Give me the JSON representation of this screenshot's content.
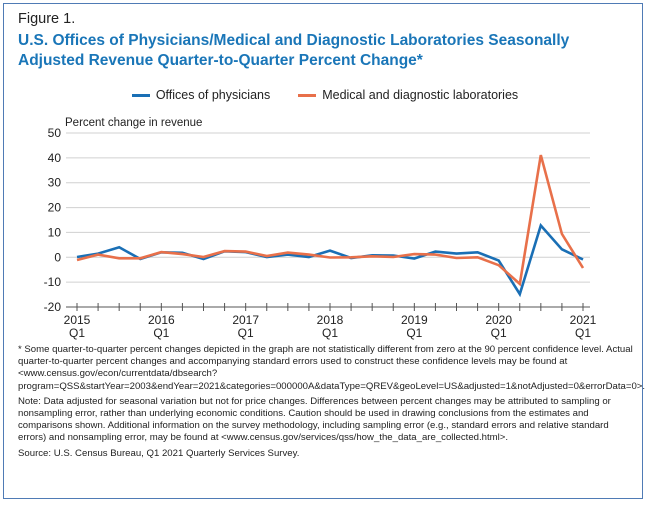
{
  "figure_label": "Figure 1.",
  "title": "U.S. Offices of Physicians/Medical and Diagnostic Laboratories Seasonally Adjusted Revenue Quarter-to-Quarter Percent Change*",
  "notes": {
    "asterisk": "* Some quarter-to-quarter percent changes depicted in the graph are not statistically different from zero at the 90 percent confidence level. Actual quarter-to-quarter percent changes and accompanying standard errors used to construct these confidence levels may be found at <www.census.gov/econ/currentdata/dbsearch?program=QSS&startYear=2003&endYear=2021&categories=000000A&dataType=QREV&geoLevel=US&adjusted=1&notAdjusted=0&errorData=0>.",
    "note": "Note: Data adjusted for seasonal variation but not for price changes. Differences between percent changes may be attributed to sampling or nonsampling error, rather than underlying economic conditions. Caution should be used in drawing conclusions from the estimates and comparisons shown. Additional information on the survey methodology, including sampling error (e.g., standard errors and relative standard errors) and nonsampling error, may be found at <www.census.gov/services/qss/how_the_data_are_collected.html>.",
    "source": "Source: U.S. Census Bureau, Q1 2021 Quarterly Services Survey."
  },
  "chart_data": {
    "type": "line",
    "title": "U.S. Offices of Physicians/Medical and Diagnostic Laboratories Seasonally Adjusted Revenue Quarter-to-Quarter Percent Change*",
    "ylabel": "Percent change in revenue",
    "xlabel": "",
    "ylim": [
      -20,
      50
    ],
    "yticks": [
      50,
      40,
      30,
      20,
      10,
      0,
      -10,
      -20
    ],
    "grid": true,
    "legend_position": "top-center",
    "x": [
      "2015Q1",
      "2015Q2",
      "2015Q3",
      "2015Q4",
      "2016Q1",
      "2016Q2",
      "2016Q3",
      "2016Q4",
      "2017Q1",
      "2017Q2",
      "2017Q3",
      "2017Q4",
      "2018Q1",
      "2018Q2",
      "2018Q3",
      "2018Q4",
      "2019Q1",
      "2019Q2",
      "2019Q3",
      "2019Q4",
      "2020Q1",
      "2020Q2",
      "2020Q3",
      "2020Q4",
      "2021Q1"
    ],
    "xtick_labels": [
      {
        "index": 0,
        "year": "2015",
        "q": "Q1"
      },
      {
        "index": 4,
        "year": "2016",
        "q": "Q1"
      },
      {
        "index": 8,
        "year": "2017",
        "q": "Q1"
      },
      {
        "index": 12,
        "year": "2018",
        "q": "Q1"
      },
      {
        "index": 16,
        "year": "2019",
        "q": "Q1"
      },
      {
        "index": 20,
        "year": "2020",
        "q": "Q1"
      },
      {
        "index": 24,
        "year": "2021",
        "q": "Q1"
      }
    ],
    "series": [
      {
        "name": "Offices of physicians",
        "color": "#1a6fb5",
        "values": [
          0.1,
          1.5,
          4.0,
          -0.7,
          2.0,
          1.8,
          -0.7,
          2.4,
          2.1,
          0.1,
          1.1,
          0.1,
          2.7,
          -0.3,
          0.8,
          0.7,
          -0.5,
          2.3,
          1.5,
          2.0,
          -1.3,
          -14.8,
          12.8,
          3.2,
          -0.9
        ]
      },
      {
        "name": "Medical and diagnostic laboratories",
        "color": "#e8704a",
        "values": [
          -1.1,
          1.1,
          -0.4,
          -0.4,
          2.1,
          1.3,
          0.1,
          2.5,
          2.3,
          0.5,
          1.9,
          1.1,
          -0.1,
          0.0,
          0.4,
          0.1,
          1.3,
          1.1,
          -0.3,
          0.0,
          -3.2,
          -10.7,
          41.1,
          9.4,
          -4.3
        ]
      }
    ]
  }
}
